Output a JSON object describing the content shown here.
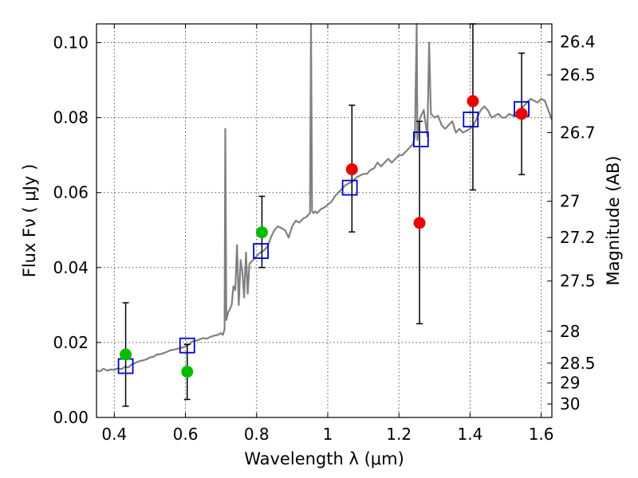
{
  "chart_data": {
    "type": "scatter",
    "xlabel": "Wavelength  λ (μm)",
    "ylabel": "Flux  Fν  ( μJy )",
    "y2label": "Magnitude (AB)",
    "xlim": [
      0.35,
      1.63
    ],
    "ylim": [
      0.0,
      0.105
    ],
    "grid": true,
    "xticks": [
      0.4,
      0.6,
      0.8,
      1.0,
      1.2,
      1.4,
      1.6
    ],
    "xtick_labels": [
      "0.4",
      "0.6",
      "0.8",
      "1",
      "1.2",
      "1.4",
      "1.6"
    ],
    "yticks": [
      0.0,
      0.02,
      0.04,
      0.06,
      0.08,
      0.1
    ],
    "ytick_labels": [
      "0.00",
      "0.02",
      "0.04",
      "0.06",
      "0.08",
      "0.10"
    ],
    "y2ticks": [
      {
        "label": "26.4",
        "flux": 0.1002
      },
      {
        "label": "26.5",
        "flux": 0.0914
      },
      {
        "label": "26.7",
        "flux": 0.076
      },
      {
        "label": "27",
        "flux": 0.0577
      },
      {
        "label": "27.2",
        "flux": 0.048
      },
      {
        "label": "27.5",
        "flux": 0.0364
      },
      {
        "label": "28",
        "flux": 0.023
      },
      {
        "label": "28.5",
        "flux": 0.0145
      },
      {
        "label": "29",
        "flux": 0.0092
      },
      {
        "label": "30",
        "flux": 0.0036
      }
    ],
    "colors": {
      "model": "#808080",
      "green_points": "#00bb00",
      "red_points": "#ee0000",
      "squares": "#0000cc",
      "errorbars": "#000000",
      "grid": "#555555"
    },
    "series": [
      {
        "name": "model_spectrum",
        "kind": "line",
        "x": [
          0.35,
          0.36,
          0.37,
          0.38,
          0.39,
          0.4,
          0.41,
          0.42,
          0.43,
          0.44,
          0.45,
          0.46,
          0.47,
          0.48,
          0.49,
          0.5,
          0.51,
          0.52,
          0.53,
          0.54,
          0.55,
          0.56,
          0.57,
          0.58,
          0.59,
          0.6,
          0.61,
          0.62,
          0.63,
          0.64,
          0.65,
          0.66,
          0.67,
          0.68,
          0.69,
          0.7,
          0.705,
          0.71,
          0.712,
          0.715,
          0.72,
          0.73,
          0.735,
          0.74,
          0.745,
          0.75,
          0.755,
          0.76,
          0.765,
          0.77,
          0.775,
          0.78,
          0.79,
          0.8,
          0.81,
          0.82,
          0.83,
          0.84,
          0.85,
          0.86,
          0.87,
          0.88,
          0.89,
          0.9,
          0.91,
          0.92,
          0.93,
          0.94,
          0.95,
          0.953,
          0.956,
          0.96,
          0.965,
          0.97,
          0.98,
          0.99,
          1.0,
          1.01,
          1.02,
          1.03,
          1.04,
          1.05,
          1.06,
          1.07,
          1.08,
          1.09,
          1.1,
          1.11,
          1.12,
          1.13,
          1.14,
          1.15,
          1.16,
          1.17,
          1.18,
          1.19,
          1.2,
          1.21,
          1.22,
          1.23,
          1.24,
          1.245,
          1.25,
          1.252,
          1.255,
          1.26,
          1.27,
          1.28,
          1.285,
          1.29,
          1.3,
          1.31,
          1.32,
          1.33,
          1.34,
          1.35,
          1.36,
          1.37,
          1.38,
          1.39,
          1.4,
          1.41,
          1.42,
          1.43,
          1.44,
          1.45,
          1.46,
          1.47,
          1.48,
          1.49,
          1.5,
          1.51,
          1.52,
          1.53,
          1.54,
          1.55,
          1.56,
          1.57,
          1.58,
          1.59,
          1.6,
          1.61,
          1.62,
          1.63
        ],
        "y": [
          0.0125,
          0.0123,
          0.013,
          0.0125,
          0.0128,
          0.0127,
          0.0131,
          0.0129,
          0.0135,
          0.0134,
          0.0142,
          0.0146,
          0.015,
          0.0152,
          0.0155,
          0.016,
          0.0162,
          0.0168,
          0.0169,
          0.0172,
          0.0176,
          0.018,
          0.0181,
          0.0184,
          0.0186,
          0.019,
          0.0195,
          0.0203,
          0.0205,
          0.0208,
          0.0212,
          0.021,
          0.0215,
          0.0218,
          0.022,
          0.0225,
          0.022,
          0.0235,
          0.077,
          0.026,
          0.028,
          0.03,
          0.035,
          0.034,
          0.046,
          0.03,
          0.042,
          0.039,
          0.032,
          0.044,
          0.033,
          0.041,
          0.042,
          0.043,
          0.044,
          0.0445,
          0.0455,
          0.048,
          0.05,
          0.051,
          0.0505,
          0.05,
          0.048,
          0.051,
          0.0525,
          0.052,
          0.053,
          0.0535,
          0.0545,
          0.105,
          0.055,
          0.0545,
          0.055,
          0.0545,
          0.0555,
          0.056,
          0.0568,
          0.0575,
          0.059,
          0.06,
          0.061,
          0.062,
          0.0625,
          0.063,
          0.064,
          0.0645,
          0.065,
          0.065,
          0.066,
          0.0665,
          0.068,
          0.067,
          0.068,
          0.069,
          0.068,
          0.069,
          0.07,
          0.07,
          0.071,
          0.072,
          0.073,
          0.075,
          0.105,
          0.074,
          0.078,
          0.08,
          0.082,
          0.075,
          0.1,
          0.081,
          0.08,
          0.0805,
          0.078,
          0.077,
          0.078,
          0.079,
          0.076,
          0.077,
          0.076,
          0.0765,
          0.077,
          0.078,
          0.08,
          0.082,
          0.083,
          0.082,
          0.08,
          0.0805,
          0.081,
          0.08,
          0.08,
          0.081,
          0.0805,
          0.0815,
          0.082,
          0.083,
          0.084,
          0.085,
          0.0845,
          0.084,
          0.085,
          0.0845,
          0.082,
          0.0795
        ]
      },
      {
        "name": "green_points",
        "kind": "scatter",
        "x": [
          0.432,
          0.605,
          0.815
        ],
        "y": [
          0.0168,
          0.0122,
          0.0494
        ],
        "yerr_low": [
          0.003,
          0.0048,
          0.04
        ],
        "yerr_high": [
          0.0306,
          0.0195,
          0.059
        ]
      },
      {
        "name": "red_points",
        "kind": "scatter",
        "x": [
          1.068,
          1.258,
          1.408,
          1.545
        ],
        "y": [
          0.0662,
          0.0519,
          0.0844,
          0.081
        ],
        "yerr_low": [
          0.0495,
          0.025,
          0.0607,
          0.0648
        ],
        "yerr_high": [
          0.0833,
          0.079,
          0.105,
          0.0972
        ]
      },
      {
        "name": "model_photometry_squares",
        "kind": "scatter",
        "x": [
          0.432,
          0.605,
          0.812,
          1.062,
          1.262,
          1.402,
          1.545
        ],
        "y": [
          0.0137,
          0.0192,
          0.0444,
          0.0613,
          0.0742,
          0.0795,
          0.0823
        ]
      }
    ]
  }
}
